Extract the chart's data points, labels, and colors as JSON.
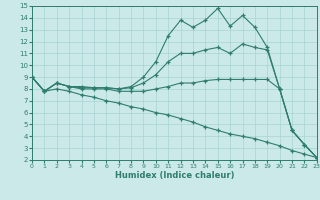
{
  "xlabel": "Humidex (Indice chaleur)",
  "x": [
    0,
    1,
    2,
    3,
    4,
    5,
    6,
    7,
    8,
    9,
    10,
    11,
    12,
    13,
    14,
    15,
    16,
    17,
    18,
    19,
    20,
    21,
    22,
    23
  ],
  "line_top": [
    9.0,
    7.8,
    8.5,
    8.2,
    8.2,
    8.1,
    8.1,
    8.0,
    8.2,
    9.0,
    10.3,
    12.5,
    13.8,
    13.2,
    13.8,
    14.8,
    13.3,
    14.2,
    13.2,
    11.5,
    8.0,
    4.5,
    3.3,
    2.2
  ],
  "line_mid_up": [
    9.0,
    7.8,
    8.5,
    8.2,
    8.1,
    8.1,
    8.1,
    8.0,
    8.1,
    8.5,
    9.2,
    10.3,
    11.0,
    11.0,
    11.3,
    11.5,
    11.0,
    11.8,
    11.5,
    11.3,
    8.0,
    4.5,
    3.3,
    2.2
  ],
  "line_mid_low": [
    9.0,
    7.8,
    8.5,
    8.2,
    8.0,
    8.0,
    8.0,
    7.8,
    7.8,
    7.8,
    8.0,
    8.2,
    8.5,
    8.5,
    8.7,
    8.8,
    8.8,
    8.8,
    8.8,
    8.8,
    8.0,
    4.5,
    3.3,
    2.2
  ],
  "line_bot": [
    9.0,
    7.8,
    8.0,
    7.8,
    7.5,
    7.3,
    7.0,
    6.8,
    6.5,
    6.3,
    6.0,
    5.8,
    5.5,
    5.2,
    4.8,
    4.5,
    4.2,
    4.0,
    3.8,
    3.5,
    3.2,
    2.8,
    2.5,
    2.2
  ],
  "line_color": "#2e7d6e",
  "bg_color": "#cce9e9",
  "grid_color": "#a8d4d4",
  "ylim": [
    2,
    15
  ],
  "xlim": [
    0,
    23
  ],
  "yticks": [
    2,
    3,
    4,
    5,
    6,
    7,
    8,
    9,
    10,
    11,
    12,
    13,
    14,
    15
  ],
  "xticks": [
    0,
    1,
    2,
    3,
    4,
    5,
    6,
    7,
    8,
    9,
    10,
    11,
    12,
    13,
    14,
    15,
    16,
    17,
    18,
    19,
    20,
    21,
    22,
    23
  ]
}
